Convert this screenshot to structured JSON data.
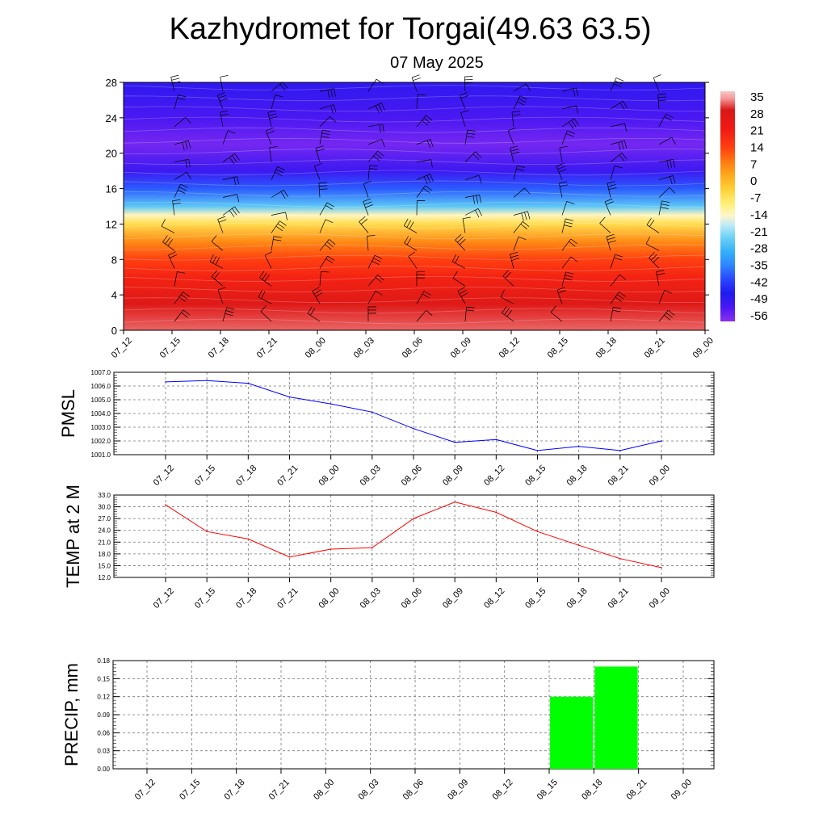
{
  "title": "Kazhydromet for Torgai(49.63 63.5)",
  "subtitle": "07 May 2025",
  "time_labels": [
    "07_12",
    "07_15",
    "07_18",
    "07_21",
    "08_00",
    "08_03",
    "08_06",
    "08_09",
    "08_12",
    "08_15",
    "08_18",
    "08_21",
    "09_00"
  ],
  "chart_data": [
    {
      "type": "heatmap",
      "y_ticks": [
        0,
        4,
        8,
        12,
        16,
        20,
        24,
        28
      ],
      "ylim": [
        0,
        28
      ],
      "colorbar": {
        "labels": [
          "35",
          "28",
          "21",
          "14",
          "7",
          "0",
          "-7",
          "-14",
          "-21",
          "-28",
          "-35",
          "-42",
          "-49",
          "-56"
        ],
        "range": [
          -60,
          38
        ]
      },
      "bands": [
        {
          "level": 0,
          "value": 33
        },
        {
          "level": 3,
          "value": 28
        },
        {
          "level": 6,
          "value": 20
        },
        {
          "level": 8,
          "value": 14
        },
        {
          "level": 10,
          "value": 6
        },
        {
          "level": 12,
          "value": -6
        },
        {
          "level": 13,
          "value": -14
        },
        {
          "level": 14,
          "value": -26
        },
        {
          "level": 16,
          "value": -40
        },
        {
          "level": 18,
          "value": -52
        },
        {
          "level": 21,
          "value": -58
        },
        {
          "level": 24,
          "value": -54
        },
        {
          "level": 26,
          "value": -52
        },
        {
          "level": 28,
          "value": -50
        }
      ],
      "wind_barb_levels": [
        1,
        3,
        5,
        7,
        9,
        11,
        13,
        15,
        17,
        19,
        21,
        23,
        25,
        27
      ]
    },
    {
      "type": "line",
      "ylabel": "PMSL",
      "ylim": [
        1001.0,
        1007.0
      ],
      "y_ticks": [
        "1001.0",
        "1002.0",
        "1003.0",
        "1004.0",
        "1005.0",
        "1006.0",
        "1007.0"
      ],
      "color": "#0000ff",
      "values": [
        1006.3,
        1006.4,
        1006.2,
        1005.2,
        1004.7,
        1004.1,
        1002.9,
        1001.9,
        1002.1,
        1001.3,
        1001.6,
        1001.3,
        1002.0
      ]
    },
    {
      "type": "line",
      "ylabel": "TEMP at 2 M",
      "ylim": [
        12.0,
        33.0
      ],
      "y_ticks": [
        "12.0",
        "15.0",
        "18.0",
        "21.0",
        "24.0",
        "27.0",
        "30.0",
        "33.0"
      ],
      "color": "#ff0000",
      "values": [
        30.5,
        23.7,
        21.8,
        17.2,
        19.2,
        19.6,
        27.0,
        31.2,
        28.6,
        23.7,
        20.2,
        16.8,
        14.5
      ]
    },
    {
      "type": "bar",
      "ylabel": "PRECIP, mm",
      "ylim": [
        0,
        0.18
      ],
      "y_ticks": [
        "0.00",
        "0.03",
        "0.06",
        "0.09",
        "0.12",
        "0.15",
        "0.18"
      ],
      "color": "#00ff00",
      "values": [
        0,
        0,
        0,
        0,
        0,
        0,
        0,
        0,
        0,
        0,
        0.12,
        0.17,
        0
      ]
    }
  ]
}
